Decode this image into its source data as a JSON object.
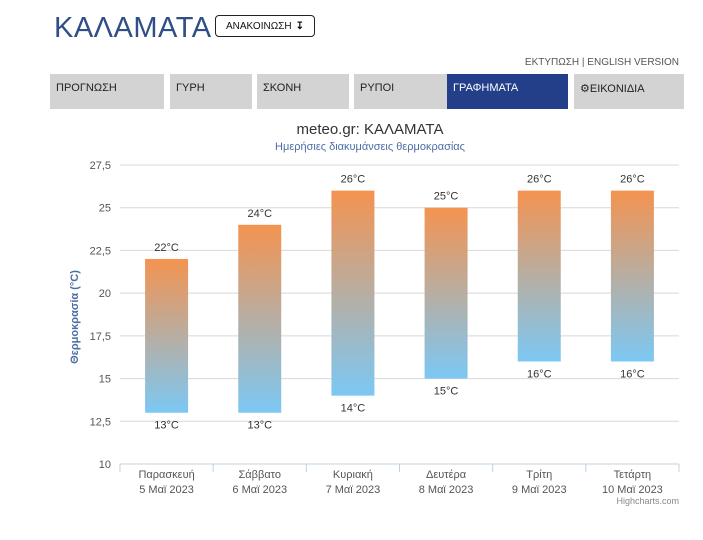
{
  "header": {
    "city": "ΚΑΛΑΜΑΤΑ",
    "announce_label": "ΑΝΑΚΟΙΝΩΣΗ",
    "announce_icon": "down-arrow-icon",
    "print_label": "ΕΚΤΥΠΩΣΗ",
    "separator": "|",
    "english_label": "ENGLISH VERSION"
  },
  "tabs": [
    {
      "label": "ΠΡΟΓΝΩΣΗ"
    },
    {
      "label": "ΓΥΡΗ"
    },
    {
      "label": "ΣΚΟΝΗ"
    },
    {
      "label": "ΡΥΠΟΙ"
    },
    {
      "label": "ΓΡΑΦΗΜΑΤΑ",
      "active": true
    },
    {
      "label": "ΕΙΚΟΝΙΔΙΑ",
      "icon": "gear-icon"
    }
  ],
  "colors": {
    "accent": "#233f8a",
    "bar_top": "#f49350",
    "bar_bottom": "#7cc8f4",
    "title": "#2f4f87"
  },
  "chart_data": {
    "type": "bar",
    "title": "meteo.gr: ΚΑΛΑΜΑΤΑ",
    "subtitle": "Ημερήσιες διακυμάνσεις θερμοκρασίας",
    "ylabel": "Θερμοκρασία (°C)",
    "ylim": [
      10,
      27.5
    ],
    "yticks": [
      "10",
      "12,5",
      "15",
      "17,5",
      "20",
      "22,5",
      "25",
      "27,5"
    ],
    "grid": true,
    "categories": [
      {
        "day": "Παρασκευή",
        "date": "5 Μαϊ 2023"
      },
      {
        "day": "Σάββατο",
        "date": "6 Μαϊ 2023"
      },
      {
        "day": "Κυριακή",
        "date": "7 Μαϊ 2023"
      },
      {
        "day": "Δευτέρα",
        "date": "8 Μαϊ 2023"
      },
      {
        "day": "Τρίτη",
        "date": "9 Μαϊ 2023"
      },
      {
        "day": "Τετάρτη",
        "date": "10 Μαϊ 2023"
      }
    ],
    "low": [
      13,
      13,
      14,
      15,
      16,
      16
    ],
    "high": [
      22,
      24,
      26,
      25,
      26,
      26
    ],
    "low_labels": [
      "13°C",
      "13°C",
      "14°C",
      "15°C",
      "16°C",
      "16°C"
    ],
    "high_labels": [
      "22°C",
      "24°C",
      "26°C",
      "25°C",
      "26°C",
      "26°C"
    ],
    "credit": "Highcharts.com"
  }
}
